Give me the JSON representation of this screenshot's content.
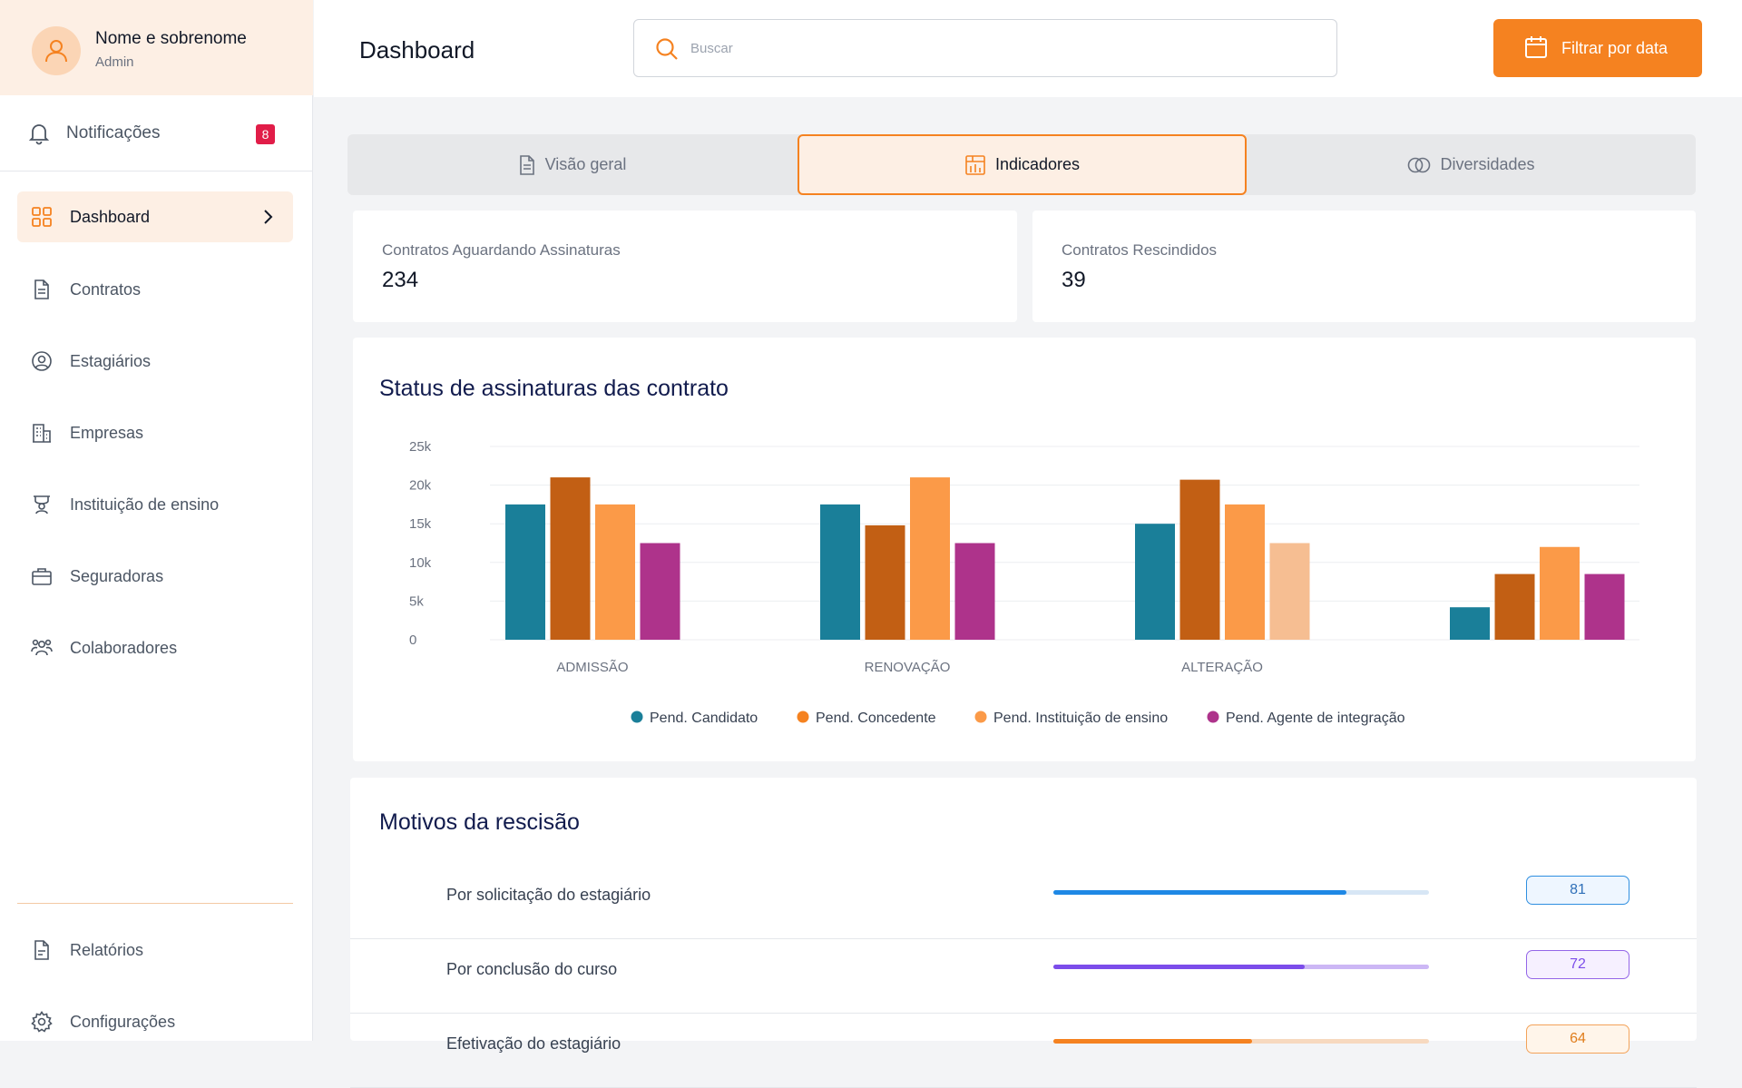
{
  "profile": {
    "name": "Nome e sobrenome",
    "role": "Admin"
  },
  "notifications": {
    "label": "Notificações",
    "count": "8"
  },
  "sidebar": {
    "items": [
      {
        "label": "Dashboard",
        "icon": "grid-icon",
        "active": true
      },
      {
        "label": "Contratos",
        "icon": "document-icon"
      },
      {
        "label": "Estagiários",
        "icon": "user-circle-icon"
      },
      {
        "label": "Empresas",
        "icon": "building-icon"
      },
      {
        "label": "Instituição de ensino",
        "icon": "school-icon"
      },
      {
        "label": "Seguradoras",
        "icon": "briefcase-icon"
      },
      {
        "label": "Colaboradores",
        "icon": "users-icon"
      }
    ],
    "bottom_items": [
      {
        "label": "Relatórios",
        "icon": "report-icon"
      },
      {
        "label": "Configurações",
        "icon": "gear-icon"
      }
    ]
  },
  "header": {
    "title": "Dashboard",
    "search_placeholder": "Buscar",
    "filter_label": "Filtrar por data"
  },
  "tabs": [
    {
      "label": "Visão geral",
      "icon": "document-icon"
    },
    {
      "label": "Indicadores",
      "icon": "chart-icon",
      "active": true
    },
    {
      "label": "Diversidades",
      "icon": "circles-icon"
    }
  ],
  "stats": [
    {
      "label": "Contratos Aguardando Assinaturas",
      "value": "234"
    },
    {
      "label": "Contratos Rescindidos",
      "value": "39"
    }
  ],
  "chart": {
    "title": "Status de assinaturas das contrato"
  },
  "chart_data": {
    "type": "bar",
    "title": "Status de assinaturas das contrato",
    "categories": [
      "ADMISSÃO",
      "RENOVAÇÃO",
      "ALTERAÇÃO",
      ""
    ],
    "yticks": [
      "0",
      "5k",
      "10k",
      "15k",
      "20k",
      "25k"
    ],
    "ylim": [
      0,
      25000
    ],
    "grid": true,
    "legend_position": "bottom",
    "series": [
      {
        "name": "Pend. Candidato",
        "color": "#1a7f99",
        "values": [
          17500,
          17500,
          15000,
          4200
        ]
      },
      {
        "name": "Pend. Concedente",
        "color": "#c25f14",
        "values": [
          21000,
          14800,
          20700,
          8500
        ]
      },
      {
        "name": "Pend. Instituição de ensino",
        "color": "#fb9a48",
        "values": [
          17500,
          21000,
          17500,
          12000
        ]
      },
      {
        "name": "Pend. Agente de integração",
        "color": "#ae338b",
        "values": [
          12500,
          12500,
          12500,
          8500
        ]
      }
    ],
    "legend_colors": [
      "#1a7f99",
      "#f58220",
      "#fb9a48",
      "#ae338b"
    ],
    "highlight": {
      "series": 3,
      "category": 2,
      "color": "#f6be92"
    }
  },
  "motivos": {
    "title": "Motivos da rescisão",
    "rows": [
      {
        "label": "Por solicitação do estagiário",
        "value": "81",
        "fraction": 0.78,
        "color": "#1e88e5",
        "track": "#d7e6f5",
        "pill_bg": "#eef6ff",
        "pill_border": "#2f8fe0",
        "pill_text": "#2f6fb8"
      },
      {
        "label": "Por conclusão do curso",
        "value": "72",
        "fraction": 0.67,
        "color": "#7c4dea",
        "track": "#ccb7f5",
        "pill_bg": "#f6f0ff",
        "pill_border": "#9466e8",
        "pill_text": "#7c4dea"
      },
      {
        "label": "Efetivação do estagiário",
        "value": "64",
        "fraction": 0.53,
        "color": "#f58220",
        "track": "#f7d9bf",
        "pill_bg": "#fff5ea",
        "pill_border": "#f3a35a",
        "pill_text": "#e07d1c"
      }
    ]
  }
}
